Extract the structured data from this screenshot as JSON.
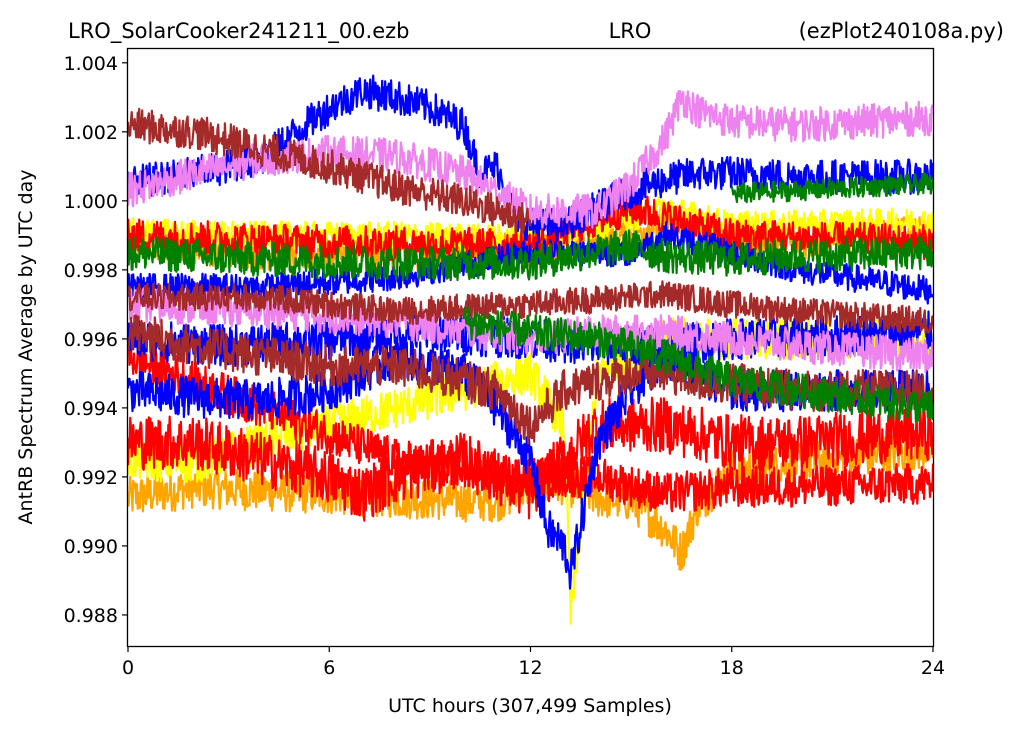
{
  "chart_data": {
    "type": "line",
    "title_left": "LRO_SolarCooker241211_00.ezb",
    "title_center": "LRO",
    "title_right": "(ezPlot240108a.py)",
    "xlabel": "UTC hours  (307,499 Samples)",
    "ylabel": "AntRB Spectrum Average by UTC day",
    "xlim": [
      0,
      24
    ],
    "ylim": [
      0.9871,
      1.0044
    ],
    "x_ticks": [
      "0",
      "6",
      "12",
      "18",
      "24"
    ],
    "y_ticks": [
      "0.988",
      "0.990",
      "0.992",
      "0.994",
      "0.996",
      "0.998",
      "1.000",
      "1.002",
      "1.004"
    ],
    "grid": false,
    "series": [
      {
        "color": "#ffa500",
        "x": [
          0,
          2,
          4,
          6,
          8,
          10,
          11,
          12,
          13,
          14,
          15,
          16,
          16.5,
          17,
          18,
          20,
          22,
          24
        ],
        "y": [
          0.9914,
          0.9917,
          0.9916,
          0.9915,
          0.9914,
          0.9913,
          0.9913,
          0.9917,
          0.9918,
          0.9914,
          0.9913,
          0.9905,
          0.9898,
          0.9912,
          0.9922,
          0.9924,
          0.9926,
          0.9928
        ],
        "noise": 0.0006
      },
      {
        "color": "#ffa500",
        "x": [
          0,
          4,
          8,
          12,
          14,
          16,
          18,
          20,
          24
        ],
        "y": [
          0.9988,
          0.9985,
          0.9984,
          0.9986,
          0.9987,
          0.9994,
          0.9989,
          0.9988,
          0.9991
        ],
        "noise": 0.0005
      },
      {
        "color": "#ffff00",
        "x": [
          0,
          2,
          4,
          6,
          8,
          10,
          12,
          13,
          13.2,
          14,
          16,
          18,
          24
        ],
        "y": [
          0.9925,
          0.9924,
          0.993,
          0.9935,
          0.994,
          0.9945,
          0.995,
          0.9935,
          0.988,
          0.995,
          0.996,
          0.996,
          0.996
        ],
        "noise": 0.0006
      },
      {
        "color": "#ffff00",
        "x": [
          0,
          4,
          8,
          12,
          15,
          16,
          18,
          24
        ],
        "y": [
          0.9991,
          0.999,
          0.999,
          0.9989,
          0.9995,
          0.9998,
          0.9993,
          0.9994
        ],
        "noise": 0.0004
      },
      {
        "color": "#ff0000",
        "x": [
          0,
          2,
          4,
          6,
          7,
          8,
          10,
          12,
          14,
          16,
          18,
          20,
          24
        ],
        "y": [
          0.993,
          0.993,
          0.9925,
          0.992,
          0.9915,
          0.992,
          0.9925,
          0.9915,
          0.9935,
          0.9935,
          0.993,
          0.993,
          0.9933
        ],
        "noise": 0.0008
      },
      {
        "color": "#ff0000",
        "x": [
          0,
          4,
          8,
          12,
          14,
          16,
          18,
          24
        ],
        "y": [
          0.9955,
          0.994,
          0.9925,
          0.992,
          0.992,
          0.9915,
          0.9917,
          0.9918
        ],
        "noise": 0.0006
      },
      {
        "color": "#ff0000",
        "x": [
          0,
          6,
          12,
          15,
          18,
          24
        ],
        "y": [
          0.999,
          0.9988,
          0.9987,
          0.9998,
          0.999,
          0.9988
        ],
        "noise": 0.0005
      },
      {
        "color": "#0000ff",
        "x": [
          0,
          2,
          4,
          6,
          7,
          8,
          10,
          11,
          12,
          12.5,
          13,
          13.2,
          14,
          15,
          16,
          17,
          18,
          20,
          24
        ],
        "y": [
          0.9945,
          0.9943,
          0.9942,
          0.9945,
          0.995,
          0.9955,
          0.995,
          0.994,
          0.9925,
          0.9905,
          0.99,
          0.9892,
          0.993,
          0.9945,
          0.9955,
          0.995,
          0.9945,
          0.9945,
          0.9945
        ],
        "noise": 0.0006
      },
      {
        "color": "#0000ff",
        "x": [
          0,
          3,
          6,
          9,
          12,
          14,
          16,
          18,
          24
        ],
        "y": [
          0.996,
          0.9958,
          0.996,
          0.9962,
          0.996,
          0.9958,
          0.9958,
          0.996,
          0.9962
        ],
        "noise": 0.0006
      },
      {
        "color": "#0000ff",
        "x": [
          0,
          2,
          4,
          5,
          6,
          7,
          8,
          9,
          10,
          10.5,
          11,
          11.5,
          12,
          13,
          14,
          15,
          16,
          17,
          18,
          20,
          24
        ],
        "y": [
          1.0005,
          1.0008,
          1.0012,
          1.002,
          1.0027,
          1.0032,
          1.003,
          1.0027,
          1.0022,
          1.0008,
          1.001,
          0.9996,
          0.9993,
          0.9993,
          0.9998,
          1.0003,
          1.0006,
          1.0008,
          1.0008,
          1.0007,
          1.0007
        ],
        "noise": 0.0005
      },
      {
        "color": "#0000ff",
        "x": [
          0,
          4,
          8,
          12,
          14,
          15,
          16,
          18,
          20,
          24
        ],
        "y": [
          0.9975,
          0.9975,
          0.9978,
          0.9985,
          0.9985,
          0.9985,
          0.999,
          0.9985,
          0.998,
          0.9974
        ],
        "noise": 0.0004
      },
      {
        "color": "#ee82ee",
        "x": [
          0,
          2,
          4,
          6,
          8,
          10,
          12,
          14,
          15,
          16,
          16.5,
          17,
          18,
          20,
          24
        ],
        "y": [
          1.0003,
          1.0008,
          1.0012,
          1.0014,
          1.0013,
          1.0008,
          0.9997,
          0.9997,
          1.0005,
          1.0018,
          1.003,
          1.0026,
          1.0023,
          1.0022,
          1.0024
        ],
        "noise": 0.0005
      },
      {
        "color": "#ee82ee",
        "x": [
          0,
          4,
          8,
          12,
          14,
          16,
          18,
          20,
          24
        ],
        "y": [
          0.997,
          0.9968,
          0.9965,
          0.996,
          0.9962,
          0.9962,
          0.996,
          0.9958,
          0.9955
        ],
        "noise": 0.0005
      },
      {
        "color": "#a52a2a",
        "x": [
          0,
          2,
          4,
          6,
          8,
          10,
          12
        ],
        "y": [
          1.0022,
          1.002,
          1.0015,
          1.001,
          1.0004,
          1.0,
          0.9994
        ],
        "noise": 0.0005
      },
      {
        "color": "#a52a2a",
        "x": [
          0,
          2,
          4,
          6,
          8,
          10,
          11,
          12,
          13,
          14,
          15,
          16,
          17,
          18,
          20,
          24
        ],
        "y": [
          0.9962,
          0.9958,
          0.9955,
          0.9952,
          0.9952,
          0.9948,
          0.9945,
          0.9935,
          0.9945,
          0.9948,
          0.995,
          0.995,
          0.9948,
          0.9947,
          0.9945,
          0.9945
        ],
        "noise": 0.0006
      },
      {
        "color": "#a52a2a",
        "x": [
          0,
          4,
          8,
          12,
          16,
          18,
          20,
          24
        ],
        "y": [
          0.9972,
          0.9972,
          0.9968,
          0.997,
          0.9973,
          0.997,
          0.9968,
          0.9965
        ],
        "noise": 0.0004
      },
      {
        "color": "#008000",
        "x": [
          0,
          4,
          8,
          12,
          15,
          16,
          18,
          20,
          24
        ],
        "y": [
          0.9985,
          0.9983,
          0.9982,
          0.9982,
          0.9987,
          0.9984,
          0.9983,
          0.9984,
          0.9985
        ],
        "noise": 0.0005
      },
      {
        "color": "#008000",
        "x": [
          10,
          12,
          14,
          16,
          18,
          20,
          24
        ],
        "y": [
          0.9965,
          0.9962,
          0.996,
          0.9955,
          0.9948,
          0.9945,
          0.994
        ],
        "noise": 0.0005
      },
      {
        "color": "#008000",
        "x": [
          18,
          20,
          22,
          24
        ],
        "y": [
          1.0002,
          1.0003,
          1.0004,
          1.0005
        ],
        "noise": 0.0003
      }
    ]
  }
}
